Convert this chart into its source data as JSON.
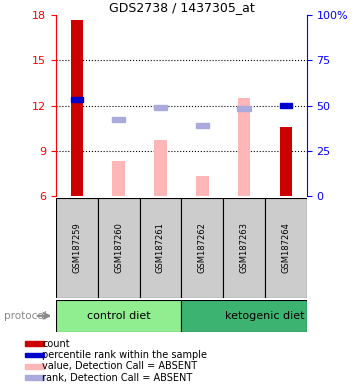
{
  "title": "GDS2738 / 1437305_at",
  "samples": [
    "GSM187259",
    "GSM187260",
    "GSM187261",
    "GSM187262",
    "GSM187263",
    "GSM187264"
  ],
  "ylim": [
    6,
    18
  ],
  "yticks_left": [
    6,
    9,
    12,
    15,
    18
  ],
  "yticks_right_labels": [
    "0",
    "25",
    "50",
    "75",
    "100%"
  ],
  "yticks_right_vals": [
    6,
    9,
    12,
    15,
    18
  ],
  "red_bars": [
    17.7,
    null,
    null,
    null,
    null,
    null
  ],
  "dark_red_bars": [
    null,
    null,
    null,
    null,
    null,
    10.6
  ],
  "pink_bars_top": [
    null,
    8.3,
    9.7,
    7.3,
    12.5,
    null
  ],
  "blue_squares": [
    12.4,
    null,
    null,
    null,
    null,
    12.0
  ],
  "lavender_squares": [
    null,
    11.1,
    11.9,
    10.7,
    11.8,
    null
  ],
  "red_color": "#CC0000",
  "pink_color": "#FFB6B6",
  "blue_color": "#0000CC",
  "lavender_color": "#AAAADD",
  "label_bg": "#CCCCCC",
  "ctrl_color": "#90EE90",
  "keto_color": "#3CB371",
  "legend_items": [
    {
      "color": "#CC0000",
      "label": "count"
    },
    {
      "color": "#0000CC",
      "label": "percentile rank within the sample"
    },
    {
      "color": "#FFB6B6",
      "label": "value, Detection Call = ABSENT"
    },
    {
      "color": "#AAAADD",
      "label": "rank, Detection Call = ABSENT"
    }
  ]
}
